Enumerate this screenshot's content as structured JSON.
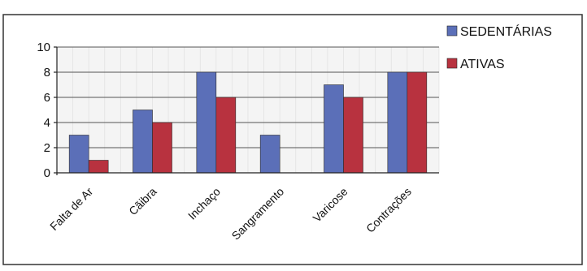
{
  "chart_data": {
    "type": "bar",
    "categories": [
      "Falta de Ar",
      "Cãibra",
      "Inchaço",
      "Sangramento",
      "Varicose",
      "Contrações"
    ],
    "series": [
      {
        "name": "SEDENTÁRIAS",
        "values": [
          3,
          5,
          8,
          3,
          7,
          8
        ],
        "color": "#5b6fb8"
      },
      {
        "name": "ATIVAS",
        "values": [
          1,
          4,
          6,
          0,
          6,
          8
        ],
        "color": "#b8323f"
      }
    ],
    "title": "",
    "xlabel": "",
    "ylabel": "",
    "ylim": [
      0,
      10
    ],
    "yticks": [
      "0",
      "2",
      "4",
      "6",
      "8",
      "10"
    ],
    "grid": true,
    "legend_position": "top-right"
  }
}
